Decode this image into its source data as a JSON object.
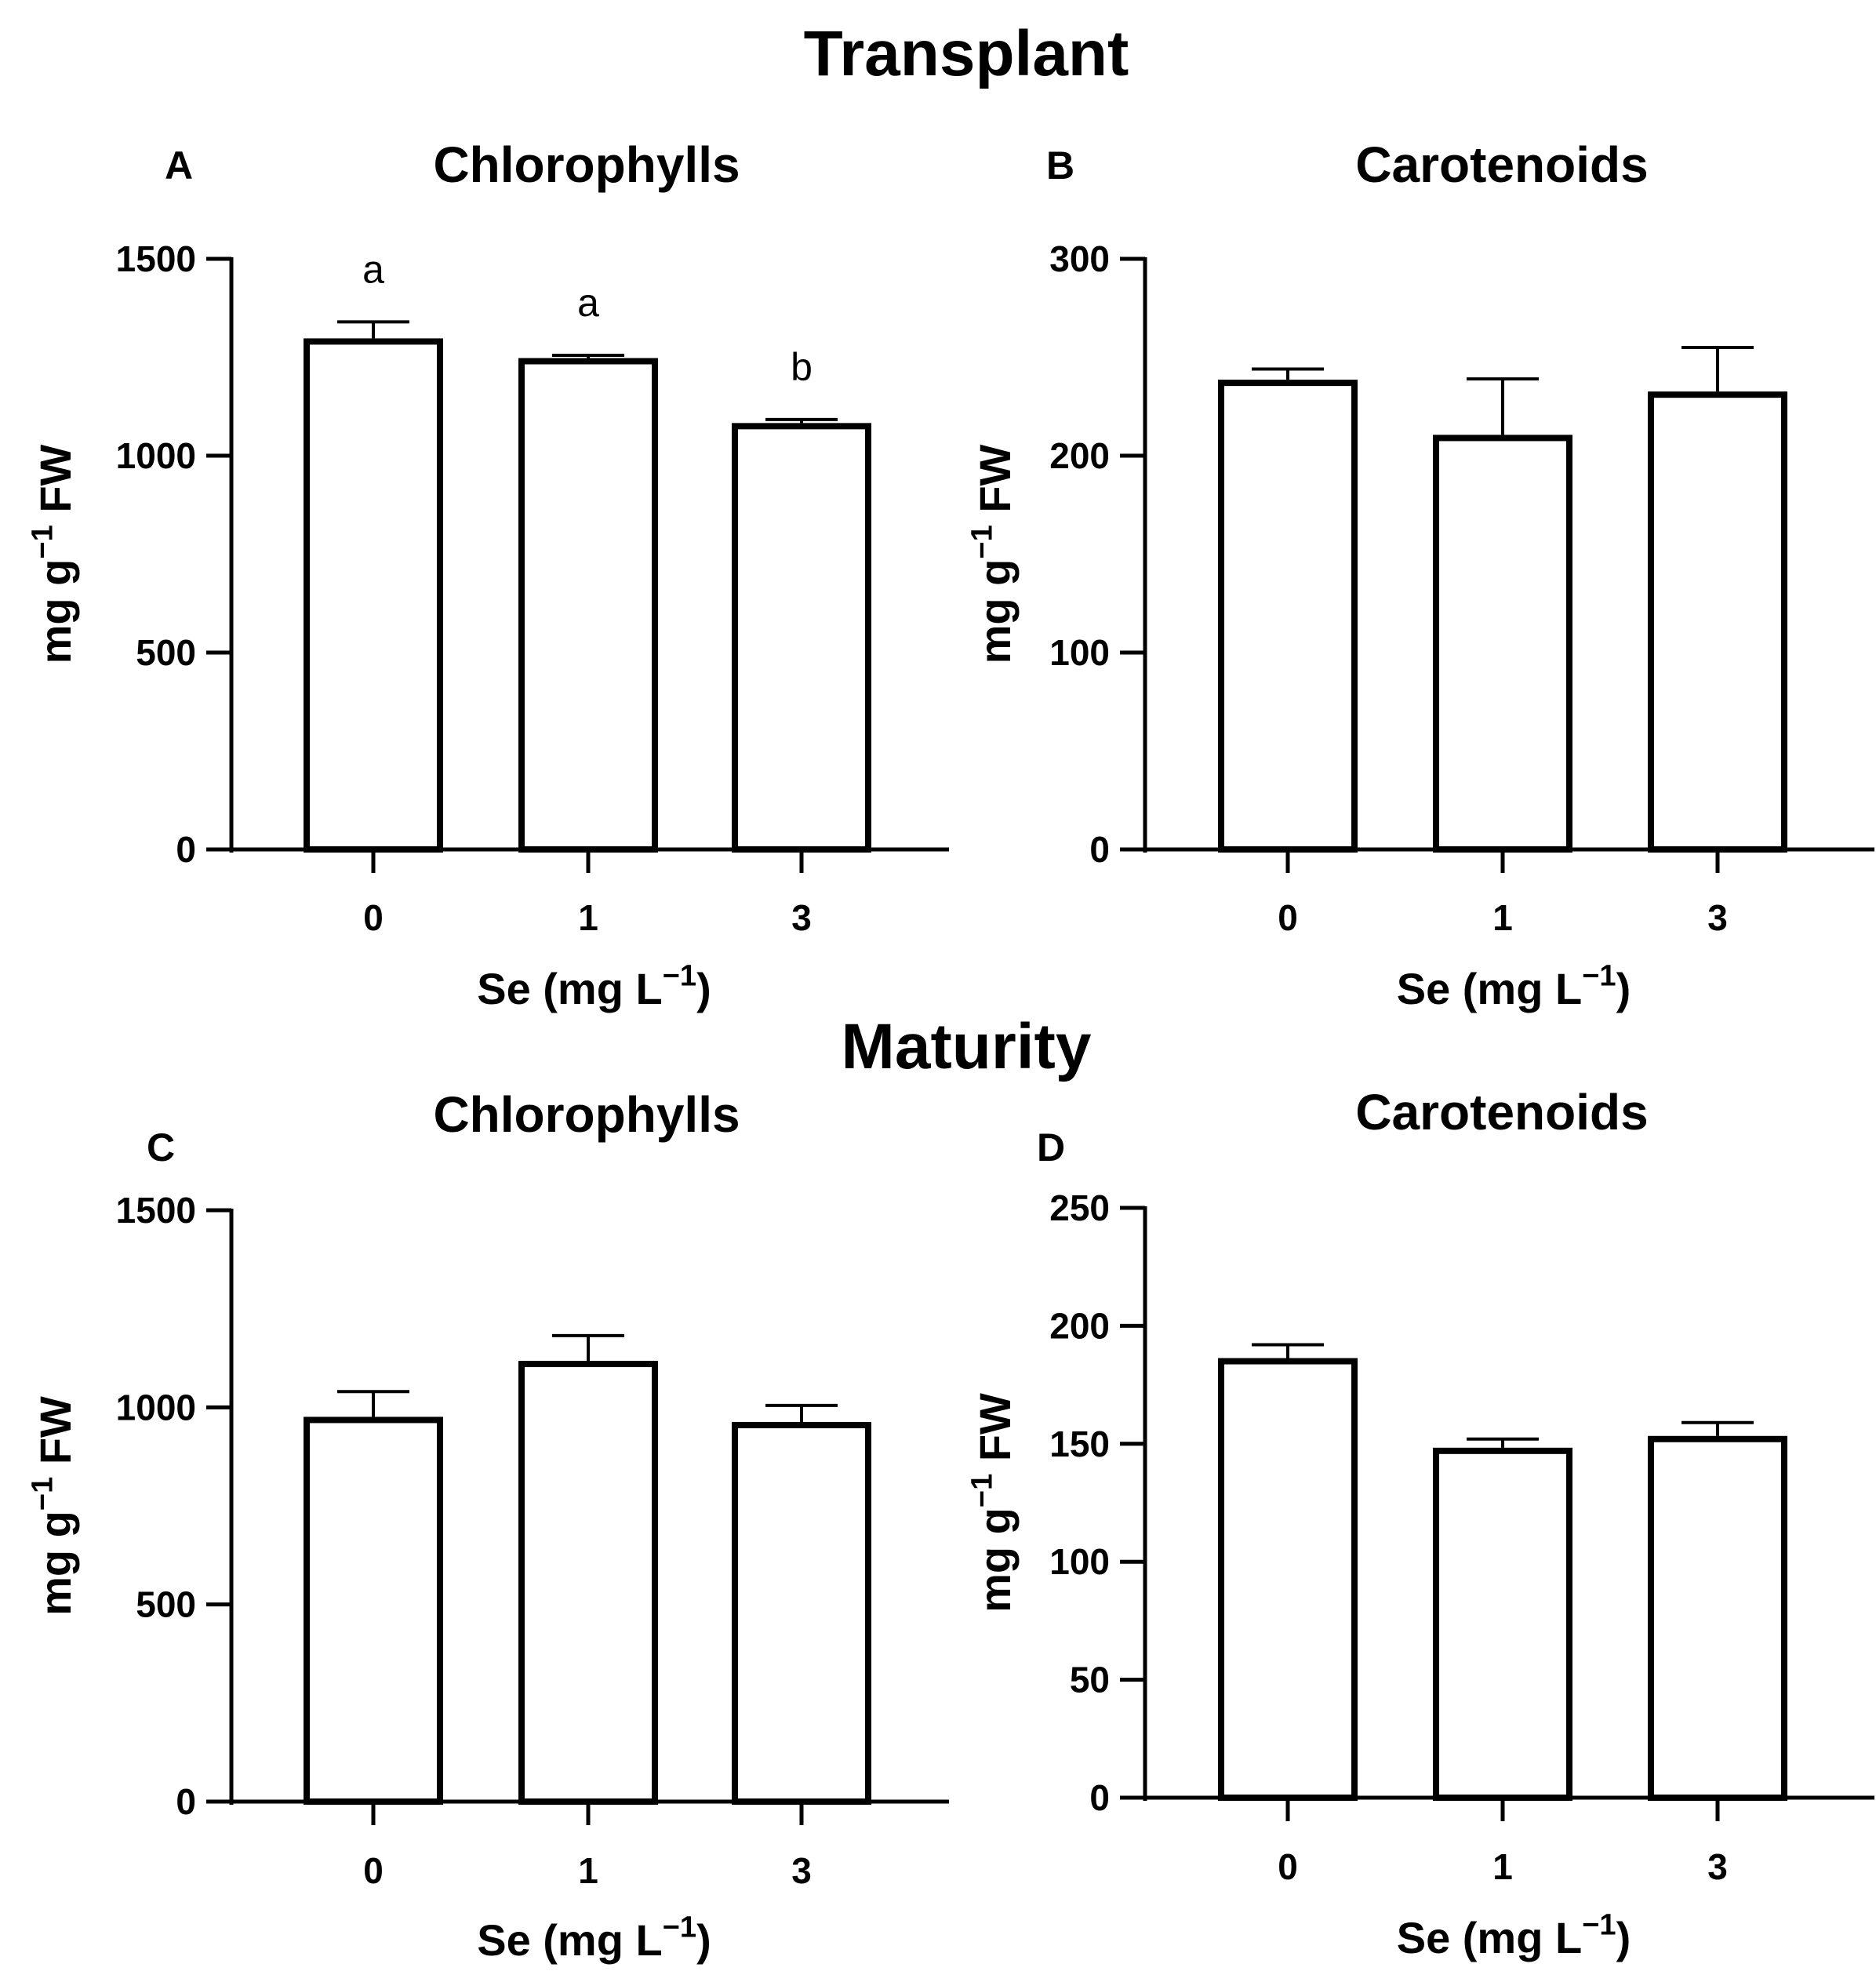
{
  "figure": {
    "section_titles": [
      "Transplant",
      "Maturity"
    ]
  },
  "chart_data": [
    {
      "panel": "A",
      "type": "bar",
      "title": "Chlorophylls",
      "categories": [
        "0",
        "1",
        "3"
      ],
      "values": [
        1290,
        1240,
        1075
      ],
      "errors": [
        50,
        15,
        17
      ],
      "significance": [
        "a",
        "a",
        "b"
      ],
      "ylim": [
        0,
        1500
      ],
      "yticks": [
        0,
        500,
        1000,
        1500
      ],
      "ytick_labels": [
        "0",
        "500",
        "1000",
        "1500"
      ],
      "ylabel": {
        "base": "mg g",
        "sup": "−1",
        "suffix": " FW"
      },
      "xlabel": {
        "base": "Se (mg L",
        "sup": "−1",
        "suffix": ")"
      }
    },
    {
      "panel": "B",
      "type": "bar",
      "title": "Carotenoids",
      "categories": [
        "0",
        "1",
        "3"
      ],
      "values": [
        237,
        209,
        231
      ],
      "errors": [
        7,
        30,
        24
      ],
      "significance": [
        "",
        "",
        ""
      ],
      "ylim": [
        0,
        300
      ],
      "yticks": [
        0,
        100,
        200,
        300
      ],
      "ytick_labels": [
        "0",
        "100",
        "200",
        "300"
      ],
      "ylabel": {
        "base": "mg g",
        "sup": "−1",
        "suffix": " FW"
      },
      "xlabel": {
        "base": "Se (mg L",
        "sup": "−1",
        "suffix": ")"
      }
    },
    {
      "panel": "C",
      "type": "bar",
      "title": "Chlorophylls",
      "categories": [
        "0",
        "1",
        "3"
      ],
      "values": [
        968,
        1110,
        955
      ],
      "errors": [
        72,
        72,
        50
      ],
      "significance": [
        "",
        "",
        ""
      ],
      "ylim": [
        0,
        1500
      ],
      "yticks": [
        0,
        500,
        1000,
        1500
      ],
      "ytick_labels": [
        "0",
        "500",
        "1000",
        "1500"
      ],
      "ylabel": {
        "base": "mg g",
        "sup": "−1",
        "suffix": " FW"
      },
      "xlabel": {
        "base": "Se (mg L",
        "sup": "−1",
        "suffix": ")"
      }
    },
    {
      "panel": "D",
      "type": "bar",
      "title": "Carotenoids",
      "categories": [
        "0",
        "1",
        "3"
      ],
      "values": [
        185,
        147,
        152
      ],
      "errors": [
        7,
        5,
        7
      ],
      "significance": [
        "",
        "",
        ""
      ],
      "ylim": [
        0,
        250
      ],
      "yticks": [
        0,
        50,
        100,
        150,
        200,
        250
      ],
      "ytick_labels": [
        "0",
        "50",
        "100",
        "150",
        "200",
        "250"
      ],
      "ylabel": {
        "base": "mg g",
        "sup": "−1",
        "suffix": " FW"
      },
      "xlabel": {
        "base": "Se (mg L",
        "sup": "−1",
        "suffix": ")"
      }
    }
  ]
}
